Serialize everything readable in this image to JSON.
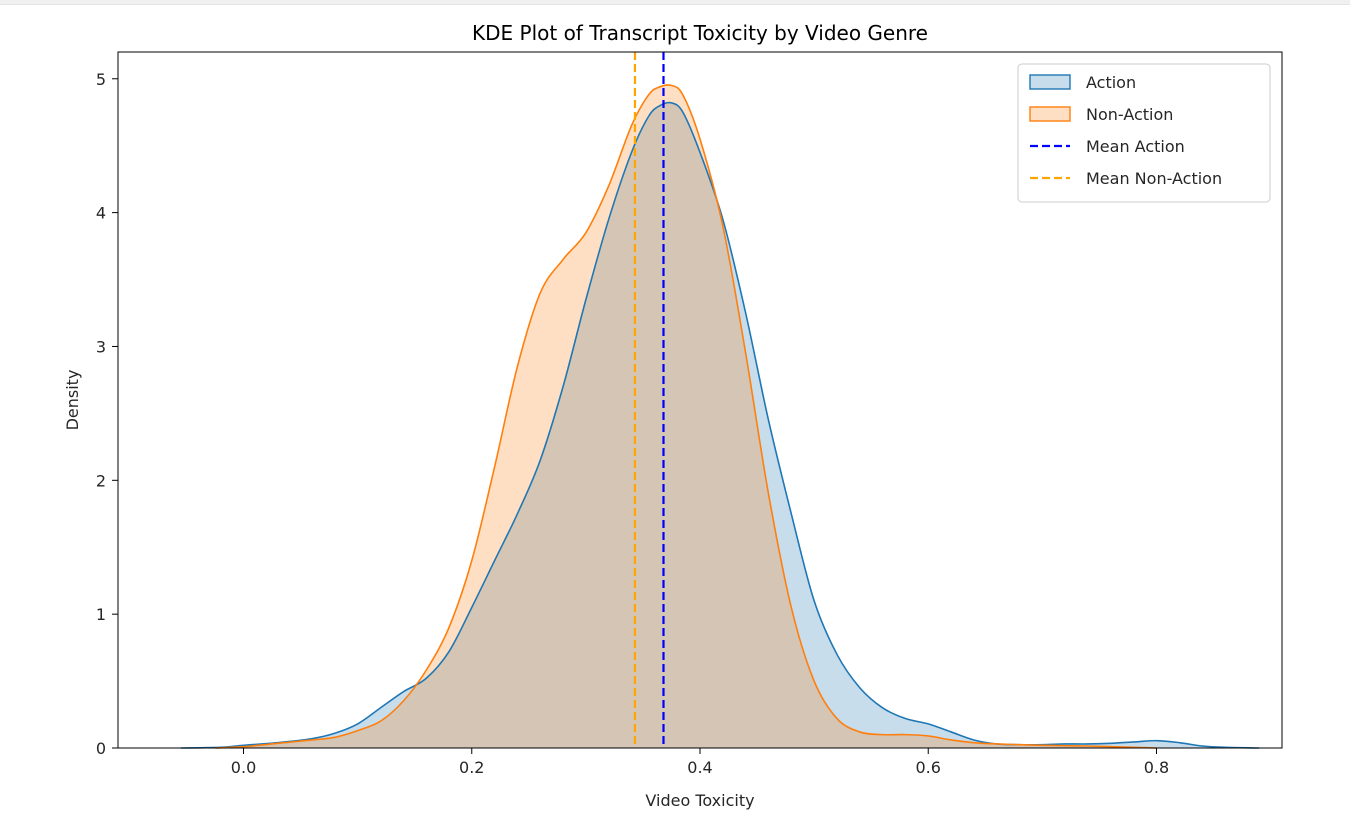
{
  "chart_data": {
    "type": "area",
    "title": "KDE Plot of Transcript Toxicity by Video Genre",
    "xlabel": "Video Toxicity",
    "ylabel": "Density",
    "xlim": [
      -0.11,
      0.91
    ],
    "ylim": [
      0,
      5.2
    ],
    "xticks": [
      {
        "value": 0.0,
        "label": "0.0"
      },
      {
        "value": 0.2,
        "label": "0.2"
      },
      {
        "value": 0.4,
        "label": "0.4"
      },
      {
        "value": 0.6,
        "label": "0.6"
      },
      {
        "value": 0.8,
        "label": "0.8"
      }
    ],
    "yticks": [
      {
        "value": 0,
        "label": "0"
      },
      {
        "value": 1,
        "label": "1"
      },
      {
        "value": 2,
        "label": "2"
      },
      {
        "value": 3,
        "label": "3"
      },
      {
        "value": 4,
        "label": "4"
      },
      {
        "value": 5,
        "label": "5"
      }
    ],
    "grid": false,
    "legend_position": "top-right",
    "series": [
      {
        "name": "Action",
        "color": "#1f77b4",
        "x": [
          -0.055,
          -0.02,
          0.0,
          0.03,
          0.06,
          0.08,
          0.1,
          0.12,
          0.14,
          0.16,
          0.18,
          0.2,
          0.22,
          0.24,
          0.26,
          0.28,
          0.3,
          0.32,
          0.34,
          0.355,
          0.365,
          0.375,
          0.385,
          0.4,
          0.42,
          0.44,
          0.46,
          0.48,
          0.5,
          0.52,
          0.54,
          0.56,
          0.58,
          0.6,
          0.62,
          0.64,
          0.66,
          0.68,
          0.7,
          0.72,
          0.74,
          0.76,
          0.78,
          0.8,
          0.82,
          0.84,
          0.86,
          0.89
        ],
        "y": [
          0.0,
          0.005,
          0.02,
          0.04,
          0.07,
          0.11,
          0.18,
          0.3,
          0.42,
          0.52,
          0.72,
          1.05,
          1.4,
          1.75,
          2.15,
          2.7,
          3.35,
          3.95,
          4.45,
          4.72,
          4.8,
          4.82,
          4.75,
          4.45,
          3.95,
          3.25,
          2.45,
          1.75,
          1.1,
          0.7,
          0.45,
          0.3,
          0.22,
          0.18,
          0.12,
          0.06,
          0.03,
          0.025,
          0.025,
          0.03,
          0.03,
          0.035,
          0.045,
          0.055,
          0.04,
          0.015,
          0.005,
          0.0
        ]
      },
      {
        "name": "Non-Action",
        "color": "#ff7f0e",
        "x": [
          -0.025,
          0.0,
          0.03,
          0.06,
          0.08,
          0.1,
          0.12,
          0.14,
          0.16,
          0.18,
          0.2,
          0.22,
          0.24,
          0.26,
          0.28,
          0.3,
          0.32,
          0.34,
          0.355,
          0.365,
          0.375,
          0.385,
          0.4,
          0.42,
          0.44,
          0.46,
          0.48,
          0.5,
          0.52,
          0.54,
          0.56,
          0.58,
          0.6,
          0.62,
          0.64,
          0.66,
          0.7,
          0.74,
          0.78,
          0.8
        ],
        "y": [
          0.0,
          0.01,
          0.035,
          0.06,
          0.08,
          0.13,
          0.2,
          0.35,
          0.58,
          0.9,
          1.4,
          2.1,
          2.85,
          3.4,
          3.65,
          3.85,
          4.2,
          4.65,
          4.88,
          4.94,
          4.95,
          4.88,
          4.55,
          3.9,
          2.95,
          1.9,
          1.05,
          0.5,
          0.22,
          0.12,
          0.1,
          0.1,
          0.09,
          0.06,
          0.04,
          0.03,
          0.02,
          0.015,
          0.005,
          0.0
        ]
      }
    ],
    "reference_lines": [
      {
        "name": "Mean Action",
        "value": 0.368,
        "color": "#0000ff",
        "style": "dashed"
      },
      {
        "name": "Mean Non-Action",
        "value": 0.343,
        "color": "#ffa500",
        "style": "dashed"
      }
    ]
  }
}
